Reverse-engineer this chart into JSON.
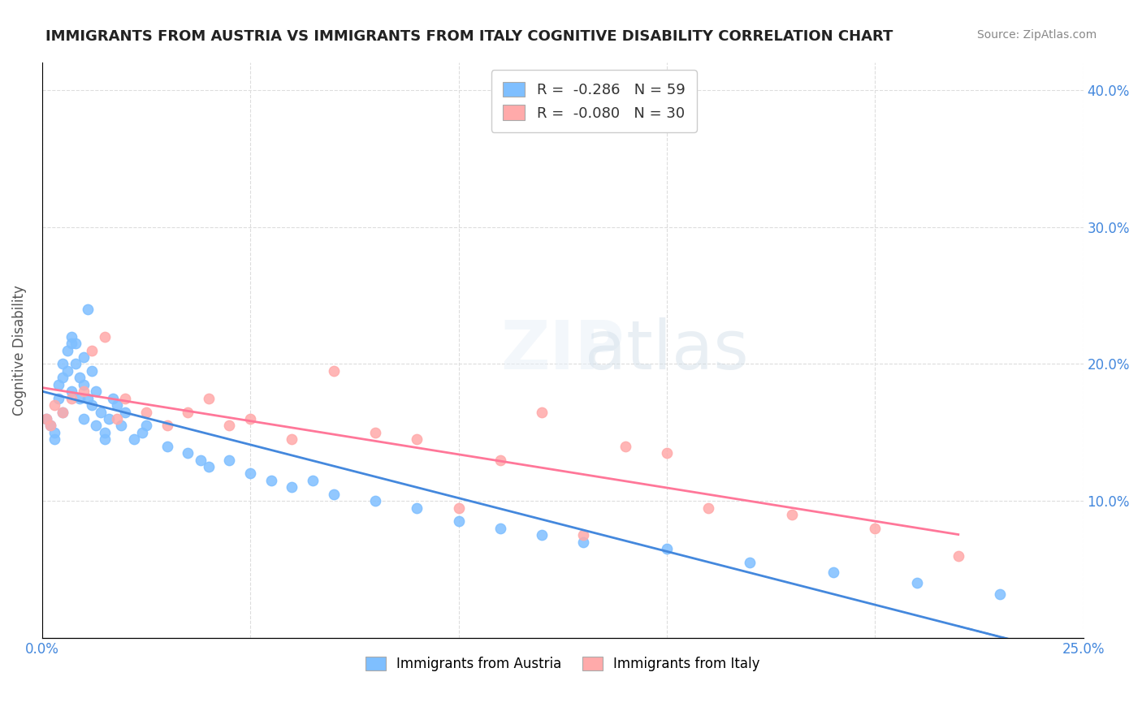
{
  "title": "IMMIGRANTS FROM AUSTRIA VS IMMIGRANTS FROM ITALY COGNITIVE DISABILITY CORRELATION CHART",
  "source": "Source: ZipAtlas.com",
  "xlabel": "",
  "ylabel": "Cognitive Disability",
  "xlim": [
    0.0,
    0.25
  ],
  "ylim": [
    0.0,
    0.42
  ],
  "xticks": [
    0.0,
    0.05,
    0.1,
    0.15,
    0.2,
    0.25
  ],
  "yticks": [
    0.0,
    0.1,
    0.2,
    0.3,
    0.4
  ],
  "xticklabels": [
    "0.0%",
    "",
    "",
    "",
    "",
    "25.0%"
  ],
  "yticklabels": [
    "",
    "10.0%",
    "20.0%",
    "30.0%",
    "40.0%"
  ],
  "austria_color": "#7fbfff",
  "italy_color": "#ffaaaa",
  "austria_line_color": "#4488dd",
  "italy_line_color": "#ff7799",
  "austria_R": -0.286,
  "austria_N": 59,
  "italy_R": -0.08,
  "italy_N": 30,
  "watermark": "ZIPatlas",
  "austria_scatter_x": [
    0.001,
    0.002,
    0.003,
    0.003,
    0.004,
    0.004,
    0.005,
    0.005,
    0.005,
    0.006,
    0.006,
    0.007,
    0.007,
    0.007,
    0.008,
    0.008,
    0.009,
    0.009,
    0.01,
    0.01,
    0.01,
    0.011,
    0.011,
    0.012,
    0.012,
    0.013,
    0.013,
    0.014,
    0.015,
    0.015,
    0.016,
    0.017,
    0.018,
    0.019,
    0.02,
    0.022,
    0.024,
    0.025,
    0.03,
    0.035,
    0.038,
    0.04,
    0.045,
    0.05,
    0.055,
    0.06,
    0.065,
    0.07,
    0.08,
    0.09,
    0.1,
    0.11,
    0.12,
    0.13,
    0.15,
    0.17,
    0.19,
    0.21,
    0.23
  ],
  "austria_scatter_y": [
    0.16,
    0.155,
    0.15,
    0.145,
    0.185,
    0.175,
    0.2,
    0.19,
    0.165,
    0.21,
    0.195,
    0.22,
    0.215,
    0.18,
    0.215,
    0.2,
    0.19,
    0.175,
    0.16,
    0.185,
    0.205,
    0.24,
    0.175,
    0.195,
    0.17,
    0.18,
    0.155,
    0.165,
    0.15,
    0.145,
    0.16,
    0.175,
    0.17,
    0.155,
    0.165,
    0.145,
    0.15,
    0.155,
    0.14,
    0.135,
    0.13,
    0.125,
    0.13,
    0.12,
    0.115,
    0.11,
    0.115,
    0.105,
    0.1,
    0.095,
    0.085,
    0.08,
    0.075,
    0.07,
    0.065,
    0.055,
    0.048,
    0.04,
    0.032
  ],
  "italy_scatter_x": [
    0.001,
    0.002,
    0.003,
    0.005,
    0.007,
    0.01,
    0.012,
    0.015,
    0.018,
    0.02,
    0.025,
    0.03,
    0.035,
    0.04,
    0.045,
    0.05,
    0.06,
    0.07,
    0.08,
    0.09,
    0.1,
    0.11,
    0.12,
    0.13,
    0.14,
    0.15,
    0.16,
    0.18,
    0.2,
    0.22
  ],
  "italy_scatter_y": [
    0.16,
    0.155,
    0.17,
    0.165,
    0.175,
    0.18,
    0.21,
    0.22,
    0.16,
    0.175,
    0.165,
    0.155,
    0.165,
    0.175,
    0.155,
    0.16,
    0.145,
    0.195,
    0.15,
    0.145,
    0.095,
    0.13,
    0.165,
    0.075,
    0.14,
    0.135,
    0.095,
    0.09,
    0.08,
    0.06
  ],
  "background_color": "#ffffff",
  "grid_color": "#dddddd",
  "title_color": "#222222",
  "axis_label_color": "#4488dd",
  "legend_R_color": "#4488dd",
  "legend_N_color": "#4488dd"
}
